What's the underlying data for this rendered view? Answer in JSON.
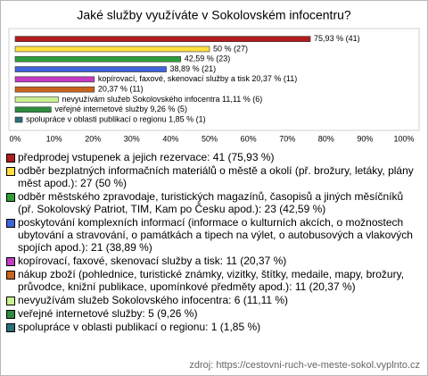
{
  "chart_data": {
    "type": "bar",
    "horizontal": true,
    "title": "Jaké služby využíváte v Sokolovském infocentru?",
    "categories": [
      "předprodej vstupenek a jejich rezervace: 41 (75,93 %)",
      "odběr bezplatných informačních materiálů o městě a okolí (př. brožury, letáky, plány měst apod.): 27 (50 %)",
      "odběr městského zpravodaje, turistických magazínů, časopisů a jiných měsíčníků (př. Sokolovský Patriot, TIM, Kam po Česku apod.): 23 (42,59 %)",
      "poskytování komplexních informací (informace o kulturních akcích, o možnostech ubytování a stravování, o památkách a tipech na výlet, o autobusových a vlakových spojích apod.): 21 (38,89 %)",
      "kopírovací, faxové, skenovací služby a tisk: 11 (20,37 %)",
      "nákup zboží (pohlednice, turistické známky, vizitky, štítky, medaile, mapy, brožury, průvodce, knižní publikace, upomínkové předměty apod.): 11 (20,37 %)",
      "nevyužívám služeb Sokolovského infocentra: 6 (11,11 %)",
      "veřejné internetové služby: 5 (9,26 %)",
      "spolupráce v oblasti publikací o regionu: 1 (1,85 %)"
    ],
    "values": [
      75.93,
      50,
      42.59,
      38.89,
      20.37,
      20.37,
      11.11,
      9.26,
      1.85
    ],
    "value_labels": [
      "75,93 % (41)",
      "50 % (27)",
      "42,59 % (23)",
      "38,89 % (21)",
      "kopírovací, faxové, skenovací služby a tisk 20,37 % (11)",
      "20,37 % (11)",
      "nevyužívám služeb Sokolovského infocentra 11,11 % (6)",
      "veřejné internetové služby 9,26 % (5)",
      "spolupráce v oblasti publikací o regionu 1,85 % (1)"
    ],
    "colors": [
      "#b01c1c",
      "#ffe040",
      "#2e9e3a",
      "#3f63d8",
      "#c23cc2",
      "#c8641e",
      "#c8f090",
      "#2f8a3e",
      "#2c6e7c"
    ],
    "xlim": [
      0,
      100
    ],
    "xticks": [
      {
        "value": 0,
        "label": "0%"
      },
      {
        "value": 10,
        "label": "10%"
      },
      {
        "value": 20,
        "label": "20%"
      },
      {
        "value": 30,
        "label": "30%"
      },
      {
        "value": 40,
        "label": "40%"
      },
      {
        "value": 50,
        "label": "50%"
      },
      {
        "value": 60,
        "label": "60%"
      },
      {
        "value": 70,
        "label": "70%"
      },
      {
        "value": 80,
        "label": "80%"
      },
      {
        "value": 90,
        "label": "90%"
      },
      {
        "value": 100,
        "label": "100%"
      }
    ],
    "source": "zdroj: https://cestovni-ruch-ve-meste-sokol.vyplnto.cz"
  }
}
